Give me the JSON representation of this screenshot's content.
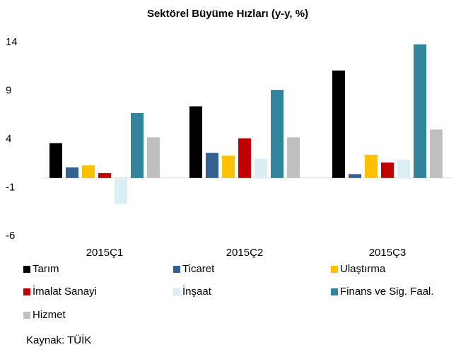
{
  "chart_data": {
    "type": "bar",
    "title": "Sektörel Büyüme Hızları (y-y, %)",
    "categories": [
      "2015Ç1",
      "2015Ç2",
      "2015Ç3"
    ],
    "series": [
      {
        "name": "Tarım",
        "color": "#000000",
        "values": [
          3.6,
          7.4,
          11.1
        ]
      },
      {
        "name": "Ticaret",
        "color": "#376092",
        "values": [
          1.1,
          2.6,
          0.4
        ]
      },
      {
        "name": "Ulaştırma",
        "color": "#ffc000",
        "values": [
          1.3,
          2.3,
          2.4
        ]
      },
      {
        "name": "İmalat Sanayi",
        "color": "#c00000",
        "values": [
          0.5,
          4.1,
          1.6
        ]
      },
      {
        "name": "İnşaat",
        "color": "#dbeef4",
        "values": [
          -2.7,
          2.0,
          1.9
        ]
      },
      {
        "name": "Finans ve Sig. Faal.",
        "color": "#31849b",
        "values": [
          6.7,
          9.1,
          13.8
        ]
      },
      {
        "name": "Hizmet",
        "color": "#bfbfbf",
        "values": [
          4.2,
          4.2,
          5.0
        ]
      }
    ],
    "ylim": [
      -6,
      14
    ],
    "yticks": [
      -6,
      -1,
      4,
      9,
      14
    ],
    "grid": false,
    "source": "Kaynak: TÜİK"
  }
}
